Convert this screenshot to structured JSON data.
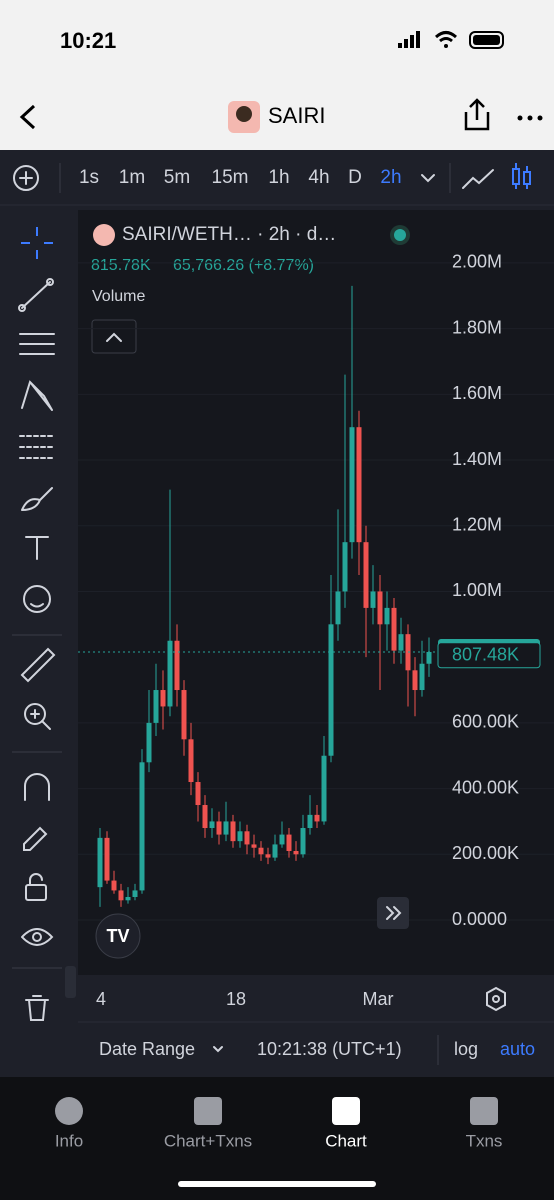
{
  "status_bar": {
    "time": "10:21"
  },
  "header": {
    "title": "SAIRI"
  },
  "toolbar": {
    "intervals": [
      "1s",
      "1m",
      "5m",
      "15m",
      "1h",
      "4h",
      "D",
      "2h"
    ],
    "active_interval": 7
  },
  "chart": {
    "type": "candlestick",
    "symbol": "SAIRI/WETH… · 2h · d…",
    "legend_value": "815.78K",
    "legend_change": "65,766.26 (+8.77%)",
    "volume_label": "Volume",
    "up_color": "#26a69a",
    "down_color": "#ef5350",
    "ylim": [
      -167400,
      2155000
    ],
    "yticks": [
      {
        "value": 0,
        "label": "0.0000"
      },
      {
        "value": 200000,
        "label": "200.00K"
      },
      {
        "value": 400000,
        "label": "400.00K"
      },
      {
        "value": 600000,
        "label": "600.00K"
      },
      {
        "value": 1000000,
        "label": "1.00M"
      },
      {
        "value": 1200000,
        "label": "1.20M"
      },
      {
        "value": 1400000,
        "label": "1.40M"
      },
      {
        "value": 1600000,
        "label": "1.60M"
      },
      {
        "value": 1800000,
        "label": "1.80M"
      },
      {
        "value": 2000000,
        "label": "2.00M"
      }
    ],
    "x_labels": [
      "4",
      "18",
      "Mar"
    ],
    "last_price": {
      "value": 815780,
      "label": "815.78K"
    },
    "second_price": {
      "value": 807480,
      "label": "807.48K"
    },
    "candles": [
      [
        100000,
        280000,
        40000,
        250000
      ],
      [
        250000,
        270000,
        110000,
        120000
      ],
      [
        120000,
        150000,
        80000,
        90000
      ],
      [
        90000,
        110000,
        40000,
        60000
      ],
      [
        60000,
        100000,
        50000,
        70000
      ],
      [
        70000,
        110000,
        60000,
        90000
      ],
      [
        90000,
        520000,
        80000,
        480000
      ],
      [
        480000,
        700000,
        450000,
        600000
      ],
      [
        600000,
        780000,
        560000,
        700000
      ],
      [
        700000,
        760000,
        580000,
        650000
      ],
      [
        650000,
        1310000,
        620000,
        850000
      ],
      [
        850000,
        900000,
        650000,
        700000
      ],
      [
        700000,
        730000,
        500000,
        550000
      ],
      [
        550000,
        600000,
        380000,
        420000
      ],
      [
        420000,
        450000,
        300000,
        350000
      ],
      [
        350000,
        380000,
        250000,
        280000
      ],
      [
        280000,
        340000,
        250000,
        300000
      ],
      [
        300000,
        330000,
        230000,
        260000
      ],
      [
        260000,
        360000,
        240000,
        300000
      ],
      [
        300000,
        320000,
        220000,
        240000
      ],
      [
        240000,
        300000,
        220000,
        270000
      ],
      [
        270000,
        290000,
        200000,
        230000
      ],
      [
        230000,
        260000,
        190000,
        220000
      ],
      [
        220000,
        240000,
        180000,
        200000
      ],
      [
        200000,
        220000,
        170000,
        190000
      ],
      [
        190000,
        260000,
        180000,
        230000
      ],
      [
        230000,
        300000,
        220000,
        260000
      ],
      [
        260000,
        280000,
        190000,
        210000
      ],
      [
        210000,
        240000,
        180000,
        200000
      ],
      [
        200000,
        320000,
        190000,
        280000
      ],
      [
        280000,
        380000,
        260000,
        320000
      ],
      [
        320000,
        350000,
        280000,
        300000
      ],
      [
        300000,
        560000,
        290000,
        500000
      ],
      [
        500000,
        1050000,
        480000,
        900000
      ],
      [
        900000,
        1250000,
        850000,
        1000000
      ],
      [
        1000000,
        1660000,
        950000,
        1150000
      ],
      [
        1150000,
        1930000,
        1100000,
        1500000
      ],
      [
        1500000,
        1550000,
        1050000,
        1150000
      ],
      [
        1150000,
        1200000,
        800000,
        950000
      ],
      [
        950000,
        1080000,
        900000,
        1000000
      ],
      [
        1000000,
        1050000,
        700000,
        900000
      ],
      [
        900000,
        1000000,
        820000,
        950000
      ],
      [
        950000,
        980000,
        780000,
        820000
      ],
      [
        820000,
        920000,
        780000,
        870000
      ],
      [
        870000,
        900000,
        650000,
        760000
      ],
      [
        760000,
        800000,
        620000,
        700000
      ],
      [
        700000,
        850000,
        680000,
        780000
      ],
      [
        780000,
        860000,
        740000,
        815780
      ]
    ]
  },
  "bottom_bar": {
    "date_range": "Date Range",
    "clock": "10:21:38 (UTC+1)",
    "log": "log",
    "auto": "auto"
  },
  "tabs": {
    "labels": [
      "Info",
      "Chart+Txns",
      "Chart",
      "Txns"
    ],
    "active": 2
  }
}
